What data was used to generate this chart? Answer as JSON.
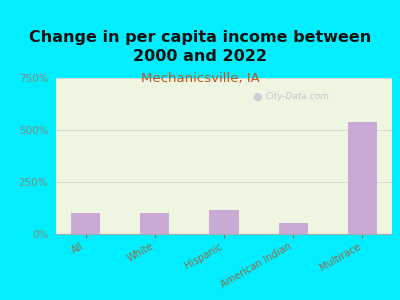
{
  "title": "Change in per capita income between\n2000 and 2022",
  "subtitle": "Mechanicsville, IA",
  "categories": [
    "All",
    "White",
    "Hispanic",
    "American Indian",
    "Multirace"
  ],
  "values": [
    100,
    100,
    115,
    55,
    540
  ],
  "bar_color": "#c8aad4",
  "title_fontsize": 11.5,
  "subtitle_fontsize": 9.5,
  "subtitle_color": "#bb5522",
  "title_color": "#111111",
  "background_color": "#00eeff",
  "plot_bg_color": "#eef5e0",
  "ylim": [
    0,
    750
  ],
  "yticks": [
    0,
    250,
    500,
    750
  ],
  "watermark": "City-Data.com",
  "tick_color": "#888877",
  "xlabel_color": "#996644"
}
